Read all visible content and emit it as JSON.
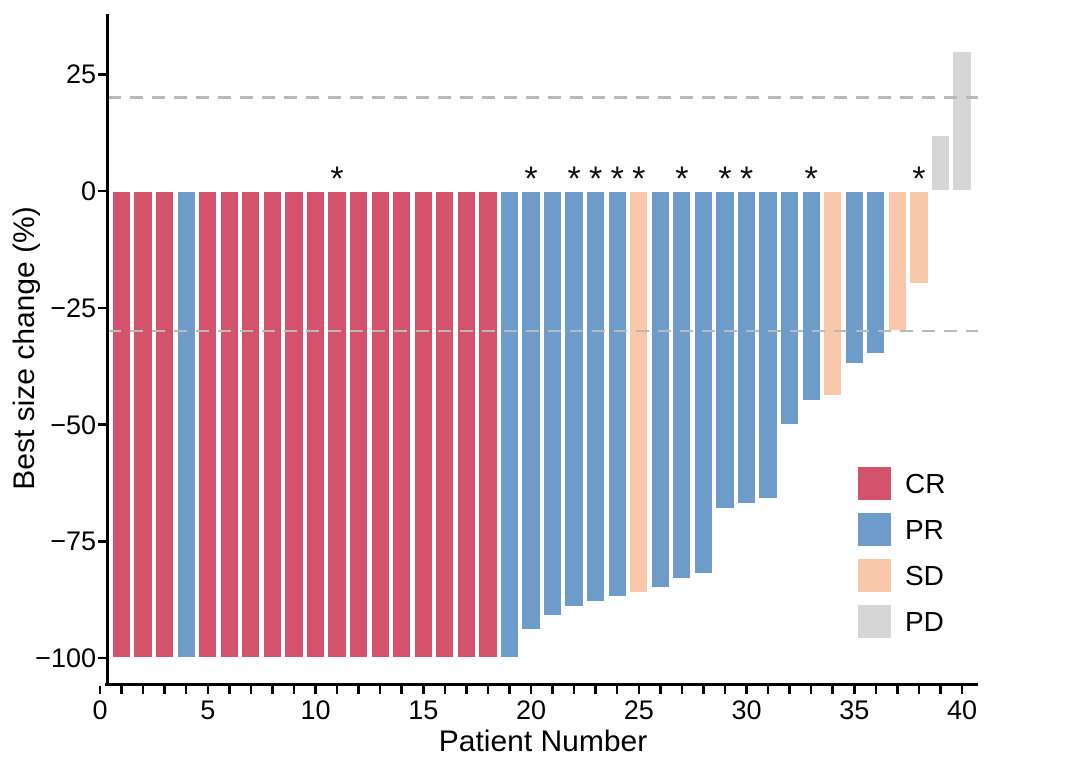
{
  "chart_data": {
    "type": "bar",
    "subtype": "waterfall",
    "title": "",
    "xlabel": "Patient Number",
    "ylabel": "Best size change (%)",
    "patients": [
      1,
      2,
      3,
      4,
      5,
      6,
      7,
      8,
      9,
      10,
      11,
      12,
      13,
      14,
      15,
      16,
      17,
      18,
      19,
      20,
      21,
      22,
      23,
      24,
      25,
      26,
      27,
      28,
      29,
      30,
      31,
      32,
      33,
      34,
      35,
      36,
      37,
      38,
      39,
      40
    ],
    "best_size_change_pct": [
      -100,
      -100,
      -100,
      -100,
      -100,
      -100,
      -100,
      -100,
      -100,
      -100,
      -100,
      -100,
      -100,
      -100,
      -100,
      -100,
      -100,
      -100,
      -100,
      -94,
      -91,
      -89,
      -88,
      -87,
      -86,
      -85,
      -83,
      -82,
      -68,
      -67,
      -66,
      -50,
      -45,
      -44,
      -37,
      -35,
      -30,
      -20,
      12,
      30
    ],
    "response": [
      "CR",
      "CR",
      "CR",
      "PR",
      "CR",
      "CR",
      "CR",
      "CR",
      "CR",
      "CR",
      "CR",
      "CR",
      "CR",
      "CR",
      "CR",
      "CR",
      "CR",
      "CR",
      "PR",
      "PR",
      "PR",
      "PR",
      "PR",
      "PR",
      "SD",
      "PR",
      "PR",
      "PR",
      "PR",
      "PR",
      "PR",
      "PR",
      "PR",
      "SD",
      "PR",
      "PR",
      "SD",
      "SD",
      "PD",
      "PD"
    ],
    "asterisk_patients": [
      11,
      20,
      22,
      23,
      24,
      25,
      27,
      29,
      30,
      33,
      38
    ],
    "asterisk_symbol": "*",
    "x_ticks": [
      0,
      5,
      10,
      15,
      20,
      25,
      30,
      35,
      40
    ],
    "x_tick_labels": [
      "0",
      "5",
      "10",
      "15",
      "20",
      "25",
      "30",
      "35",
      "40"
    ],
    "x_minor_ticks_every": 1,
    "xlim": [
      0,
      41
    ],
    "y_ticks": [
      25,
      0,
      -25,
      -50,
      -75,
      -100
    ],
    "y_tick_labels": [
      "25",
      "0",
      "−25",
      "−50",
      "−75",
      "−100"
    ],
    "ylim": [
      -105,
      35
    ],
    "grid": false,
    "reference_lines_pct": [
      20,
      -30
    ],
    "legend_position": "right-center"
  },
  "legend": {
    "items": [
      {
        "key": "CR",
        "label": "CR"
      },
      {
        "key": "PR",
        "label": "PR"
      },
      {
        "key": "SD",
        "label": "SD"
      },
      {
        "key": "PD",
        "label": "PD"
      }
    ]
  },
  "labels": {
    "x_axis_title": "Patient Number",
    "y_axis_title": "Best size change (%)"
  },
  "colors": {
    "CR": "#d5526c",
    "PR": "#6d9bca",
    "SD": "#f9c7a9",
    "PD": "#d6d6d6",
    "reference_line": "#b9b9b9",
    "axis": "#000000",
    "asterisk": "#111111",
    "background": "#ffffff"
  }
}
